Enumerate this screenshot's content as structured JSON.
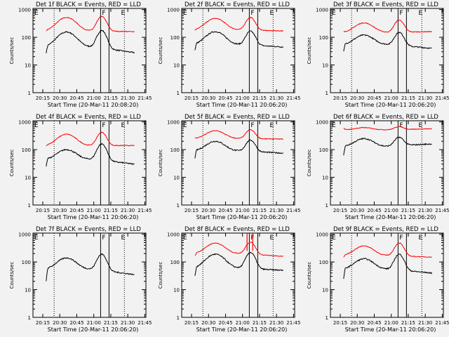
{
  "figure": {
    "background": "#f2f2f2",
    "series_colors": {
      "events": "#000000",
      "lld": "#ff0000"
    },
    "y_ticks": [
      "1",
      "10",
      "100",
      "1000"
    ],
    "x_ticks": [
      "20:15",
      "20:30",
      "20:45",
      "21:00",
      "21:15",
      "21:30",
      "21:45"
    ],
    "ylabel": "Counts/sec"
  },
  "chart_data": [
    {
      "type": "line",
      "title": "Det 1f BLACK = Events, RED = LLD",
      "xlabel": "Start Time (20-Mar-11 20:08:20)",
      "markers": {
        "F": "21:06",
        "E": "21:24"
      },
      "shape": "a",
      "series": [
        {
          "name": "Events",
          "peak1": 155,
          "dip": 45,
          "peak2": 175,
          "end": 28,
          "start": 28
        },
        {
          "name": "LLD",
          "peak1": 520,
          "dip": 170,
          "peak2": 560,
          "end": 160,
          "start": 170
        }
      ]
    },
    {
      "type": "line",
      "title": "Det 2f BLACK = Events, RED = LLD",
      "xlabel": "Start Time (20-Mar-11 20:06:20)",
      "markers": {
        "F": "21:06",
        "E": "21:24"
      },
      "shape": "a",
      "series": [
        {
          "name": "Events",
          "peak1": 160,
          "dip": 55,
          "peak2": 165,
          "end": 45,
          "start": 35
        },
        {
          "name": "LLD",
          "peak1": 480,
          "dip": 185,
          "peak2": 520,
          "end": 170,
          "start": 180
        }
      ]
    },
    {
      "type": "line",
      "title": "Det 3f BLACK = Events, RED = LLD",
      "xlabel": "Start Time (20-Mar-11 20:06:20)",
      "markers": {
        "F": "21:06",
        "E": "21:24"
      },
      "shape": "a",
      "series": [
        {
          "name": "Events",
          "peak1": 120,
          "dip": 55,
          "peak2": 150,
          "end": 40,
          "start": 30
        },
        {
          "name": "LLD",
          "peak1": 330,
          "dip": 150,
          "peak2": 420,
          "end": 160,
          "start": 160
        }
      ]
    },
    {
      "type": "line",
      "title": "Det 4f BLACK = Events, RED = LLD",
      "xlabel": "Start Time (20-Mar-11 20:06:20)",
      "markers": {
        "F": "21:06",
        "E": "21:24"
      },
      "shape": "a",
      "series": [
        {
          "name": "Events",
          "peak1": 100,
          "dip": 45,
          "peak2": 160,
          "end": 30,
          "start": 25
        },
        {
          "name": "LLD",
          "peak1": 360,
          "dip": 140,
          "peak2": 420,
          "end": 140,
          "start": 140
        }
      ]
    },
    {
      "type": "line",
      "title": "Det 5f BLACK = Events, RED = LLD",
      "xlabel": "Start Time (20-Mar-11 20:06:20)",
      "markers": {
        "F": "21:06",
        "E": "21:24"
      },
      "shape": "b",
      "series": [
        {
          "name": "Events",
          "peak1": 200,
          "dip": 90,
          "peak2": 220,
          "end": 75,
          "start": 50
        },
        {
          "name": "LLD",
          "peak1": 480,
          "dip": 250,
          "peak2": 520,
          "end": 240,
          "start": 260
        }
      ]
    },
    {
      "type": "line",
      "title": "Det 6f BLACK = Events, RED = LLD",
      "xlabel": "Start Time (20-Mar-11 20:06:20)",
      "markers": {
        "F": "21:06",
        "E": "21:24"
      },
      "shape": "b",
      "series": [
        {
          "name": "Events",
          "peak1": 250,
          "dip": 130,
          "peak2": 280,
          "end": 160,
          "start": 60
        },
        {
          "name": "LLD",
          "peak1": 620,
          "dip": 520,
          "peak2": 680,
          "end": 560,
          "start": 600
        }
      ]
    },
    {
      "type": "line",
      "title": "Det 7f BLACK = Events, RED = LLD",
      "xlabel": "Start Time (20-Mar-11 20:06:20)",
      "markers": {
        "F": "21:06",
        "E": "21:24"
      },
      "shape": "a",
      "series": [
        {
          "name": "Events",
          "peak1": 140,
          "dip": 55,
          "peak2": 190,
          "end": 35,
          "start": 20
        }
      ]
    },
    {
      "type": "line",
      "title": "Det 8f BLACK = Events, RED = LLD",
      "xlabel": "Start Time (20-Mar-11 20:06:20)",
      "markers": {
        "F": "21:06",
        "E": "21:24"
      },
      "shape": "c",
      "series": [
        {
          "name": "Events",
          "peak1": 190,
          "dip": 60,
          "peak2": 220,
          "end": 50,
          "start": 30
        },
        {
          "name": "LLD",
          "peak1": 480,
          "dip": 200,
          "peak2": 520,
          "end": 160,
          "start": 170
        }
      ]
    },
    {
      "type": "line",
      "title": "Det 9f BLACK = Events, RED = LLD",
      "xlabel": "Start Time (20-Mar-11 20:06:20)",
      "markers": {
        "F": "21:06",
        "E": "21:24"
      },
      "shape": "a",
      "series": [
        {
          "name": "Events",
          "peak1": 130,
          "dip": 55,
          "peak2": 190,
          "end": 40,
          "start": 25
        },
        {
          "name": "LLD",
          "peak1": 380,
          "dip": 170,
          "peak2": 480,
          "end": 150,
          "start": 150
        }
      ]
    }
  ]
}
